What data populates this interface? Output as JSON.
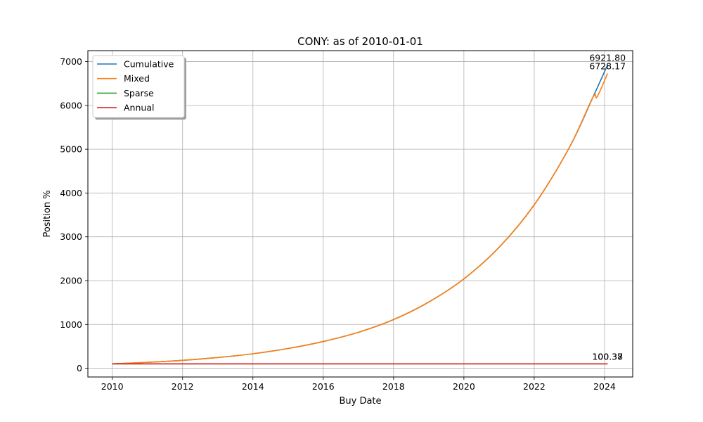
{
  "chart_data": {
    "type": "line",
    "title": "CONY: as of 2010-01-01",
    "xlabel": "Buy Date",
    "ylabel": "Position %",
    "xlim": [
      "2009-04-23",
      "2024-10-20"
    ],
    "ylim": [
      -200,
      7250
    ],
    "x_ticks": [
      "2010",
      "2012",
      "2014",
      "2016",
      "2018",
      "2020",
      "2022",
      "2024"
    ],
    "y_ticks": [
      "0",
      "1000",
      "2000",
      "3000",
      "4000",
      "5000",
      "6000",
      "7000"
    ],
    "grid": true,
    "legend_position": "top-left",
    "series": [
      {
        "name": "Cumulative",
        "color": "#1f77b4",
        "points": [
          [
            "2010-01-01",
            100
          ],
          [
            "2011-01-01",
            135
          ],
          [
            "2012-01-01",
            180
          ],
          [
            "2013-01-01",
            245
          ],
          [
            "2014-01-01",
            330
          ],
          [
            "2015-01-01",
            450
          ],
          [
            "2016-01-01",
            610
          ],
          [
            "2017-01-01",
            820
          ],
          [
            "2018-01-01",
            1110
          ],
          [
            "2019-01-01",
            1510
          ],
          [
            "2020-01-01",
            2040
          ],
          [
            "2021-01-01",
            2760
          ],
          [
            "2022-01-01",
            3730
          ],
          [
            "2023-01-01",
            5040
          ],
          [
            "2023-09-01",
            6180
          ],
          [
            "2024-02-01",
            6921.8
          ]
        ],
        "end_label": "6921.80"
      },
      {
        "name": "Mixed",
        "color": "#ff7f0e",
        "points": [
          [
            "2010-01-01",
            100
          ],
          [
            "2011-01-01",
            135
          ],
          [
            "2012-01-01",
            180
          ],
          [
            "2013-01-01",
            245
          ],
          [
            "2014-01-01",
            330
          ],
          [
            "2015-01-01",
            450
          ],
          [
            "2016-01-01",
            610
          ],
          [
            "2017-01-01",
            820
          ],
          [
            "2018-01-01",
            1110
          ],
          [
            "2019-01-01",
            1510
          ],
          [
            "2020-01-01",
            2040
          ],
          [
            "2021-01-01",
            2760
          ],
          [
            "2022-01-01",
            3730
          ],
          [
            "2023-01-01",
            5040
          ],
          [
            "2023-09-01",
            6180
          ],
          [
            "2023-10-15",
            6190
          ],
          [
            "2024-02-01",
            6728.17
          ]
        ],
        "end_label": "6728.17"
      },
      {
        "name": "Sparse",
        "color": "#2ca02c",
        "points": [
          [
            "2010-01-01",
            100
          ],
          [
            "2024-02-01",
            100.37
          ]
        ],
        "end_label": "100.37"
      },
      {
        "name": "Annual",
        "color": "#d62728",
        "points": [
          [
            "2010-01-01",
            100
          ],
          [
            "2024-02-01",
            100.38
          ]
        ],
        "end_label": "100.38"
      }
    ]
  }
}
